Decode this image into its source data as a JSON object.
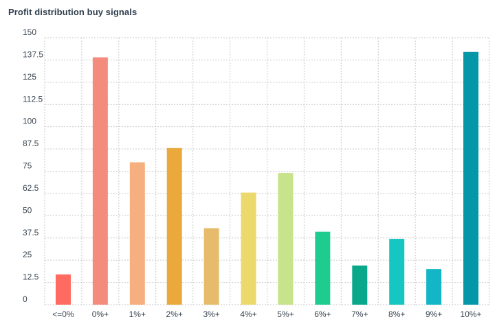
{
  "chart_data": {
    "type": "bar",
    "title": "Profit distribution buy signals",
    "xlabel": "",
    "ylabel": "",
    "categories": [
      "<=0%",
      "0%+",
      "1%+",
      "2%+",
      "3%+",
      "4%+",
      "5%+",
      "6%+",
      "7%+",
      "8%+",
      "9%+",
      "10%+"
    ],
    "values": [
      17,
      139,
      80,
      88,
      43,
      63,
      74,
      41,
      22,
      37,
      20,
      142
    ],
    "colors": [
      "#ff6b61",
      "#f48c7d",
      "#f6b07f",
      "#eaa93a",
      "#e6bc6c",
      "#ecd96b",
      "#c7e38b",
      "#1fcc90",
      "#0aa88a",
      "#15c6c2",
      "#12b6c7",
      "#0597a8"
    ],
    "ylim": [
      0,
      150
    ],
    "yticks": [
      "0",
      "12.5",
      "25",
      "37.5",
      "50",
      "62.5",
      "75",
      "87.5",
      "100",
      "112.5",
      "125",
      "137.5",
      "150"
    ],
    "grid": true,
    "grid_color": "#c9c9c9"
  }
}
